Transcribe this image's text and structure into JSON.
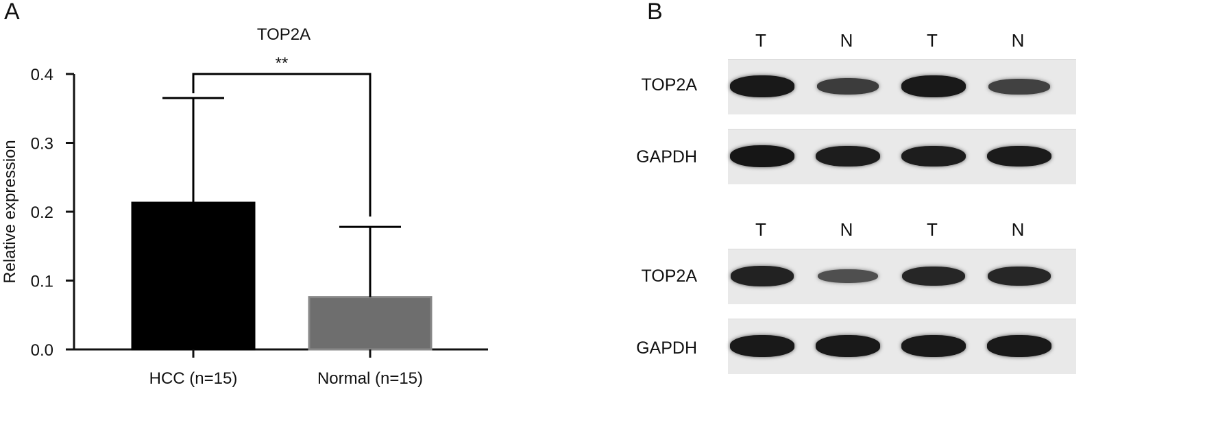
{
  "panels": {
    "a_label": "A",
    "b_label": "B"
  },
  "chart_data": {
    "type": "bar",
    "title": "TOP2A",
    "ylabel": "Relative expression",
    "xlabel": "",
    "ylim": [
      0,
      0.4
    ],
    "yticks": [
      "0.0",
      "0.1",
      "0.2",
      "0.3",
      "0.4"
    ],
    "categories": [
      "HCC (n=15)",
      "Normal (n=15)"
    ],
    "values": [
      0.213,
      0.076
    ],
    "error_upper": [
      0.365,
      0.178
    ],
    "colors": [
      "#000000",
      "#6e6e6e"
    ],
    "significance": {
      "label": "**",
      "y": 0.4
    }
  },
  "blot": {
    "lanes_top": [
      "T",
      "N",
      "T",
      "N"
    ],
    "lanes_bottom": [
      "T",
      "N",
      "T",
      "N"
    ],
    "rows": [
      {
        "label": "TOP2A",
        "intensity": [
          0.95,
          0.55,
          0.95,
          0.5
        ]
      },
      {
        "label": "GAPDH",
        "intensity": [
          0.98,
          0.9,
          0.9,
          0.92
        ]
      },
      {
        "label": "TOP2A",
        "intensity": [
          0.85,
          0.35,
          0.8,
          0.8
        ]
      },
      {
        "label": "GAPDH",
        "intensity": [
          0.95,
          0.95,
          0.95,
          0.95
        ]
      }
    ]
  }
}
